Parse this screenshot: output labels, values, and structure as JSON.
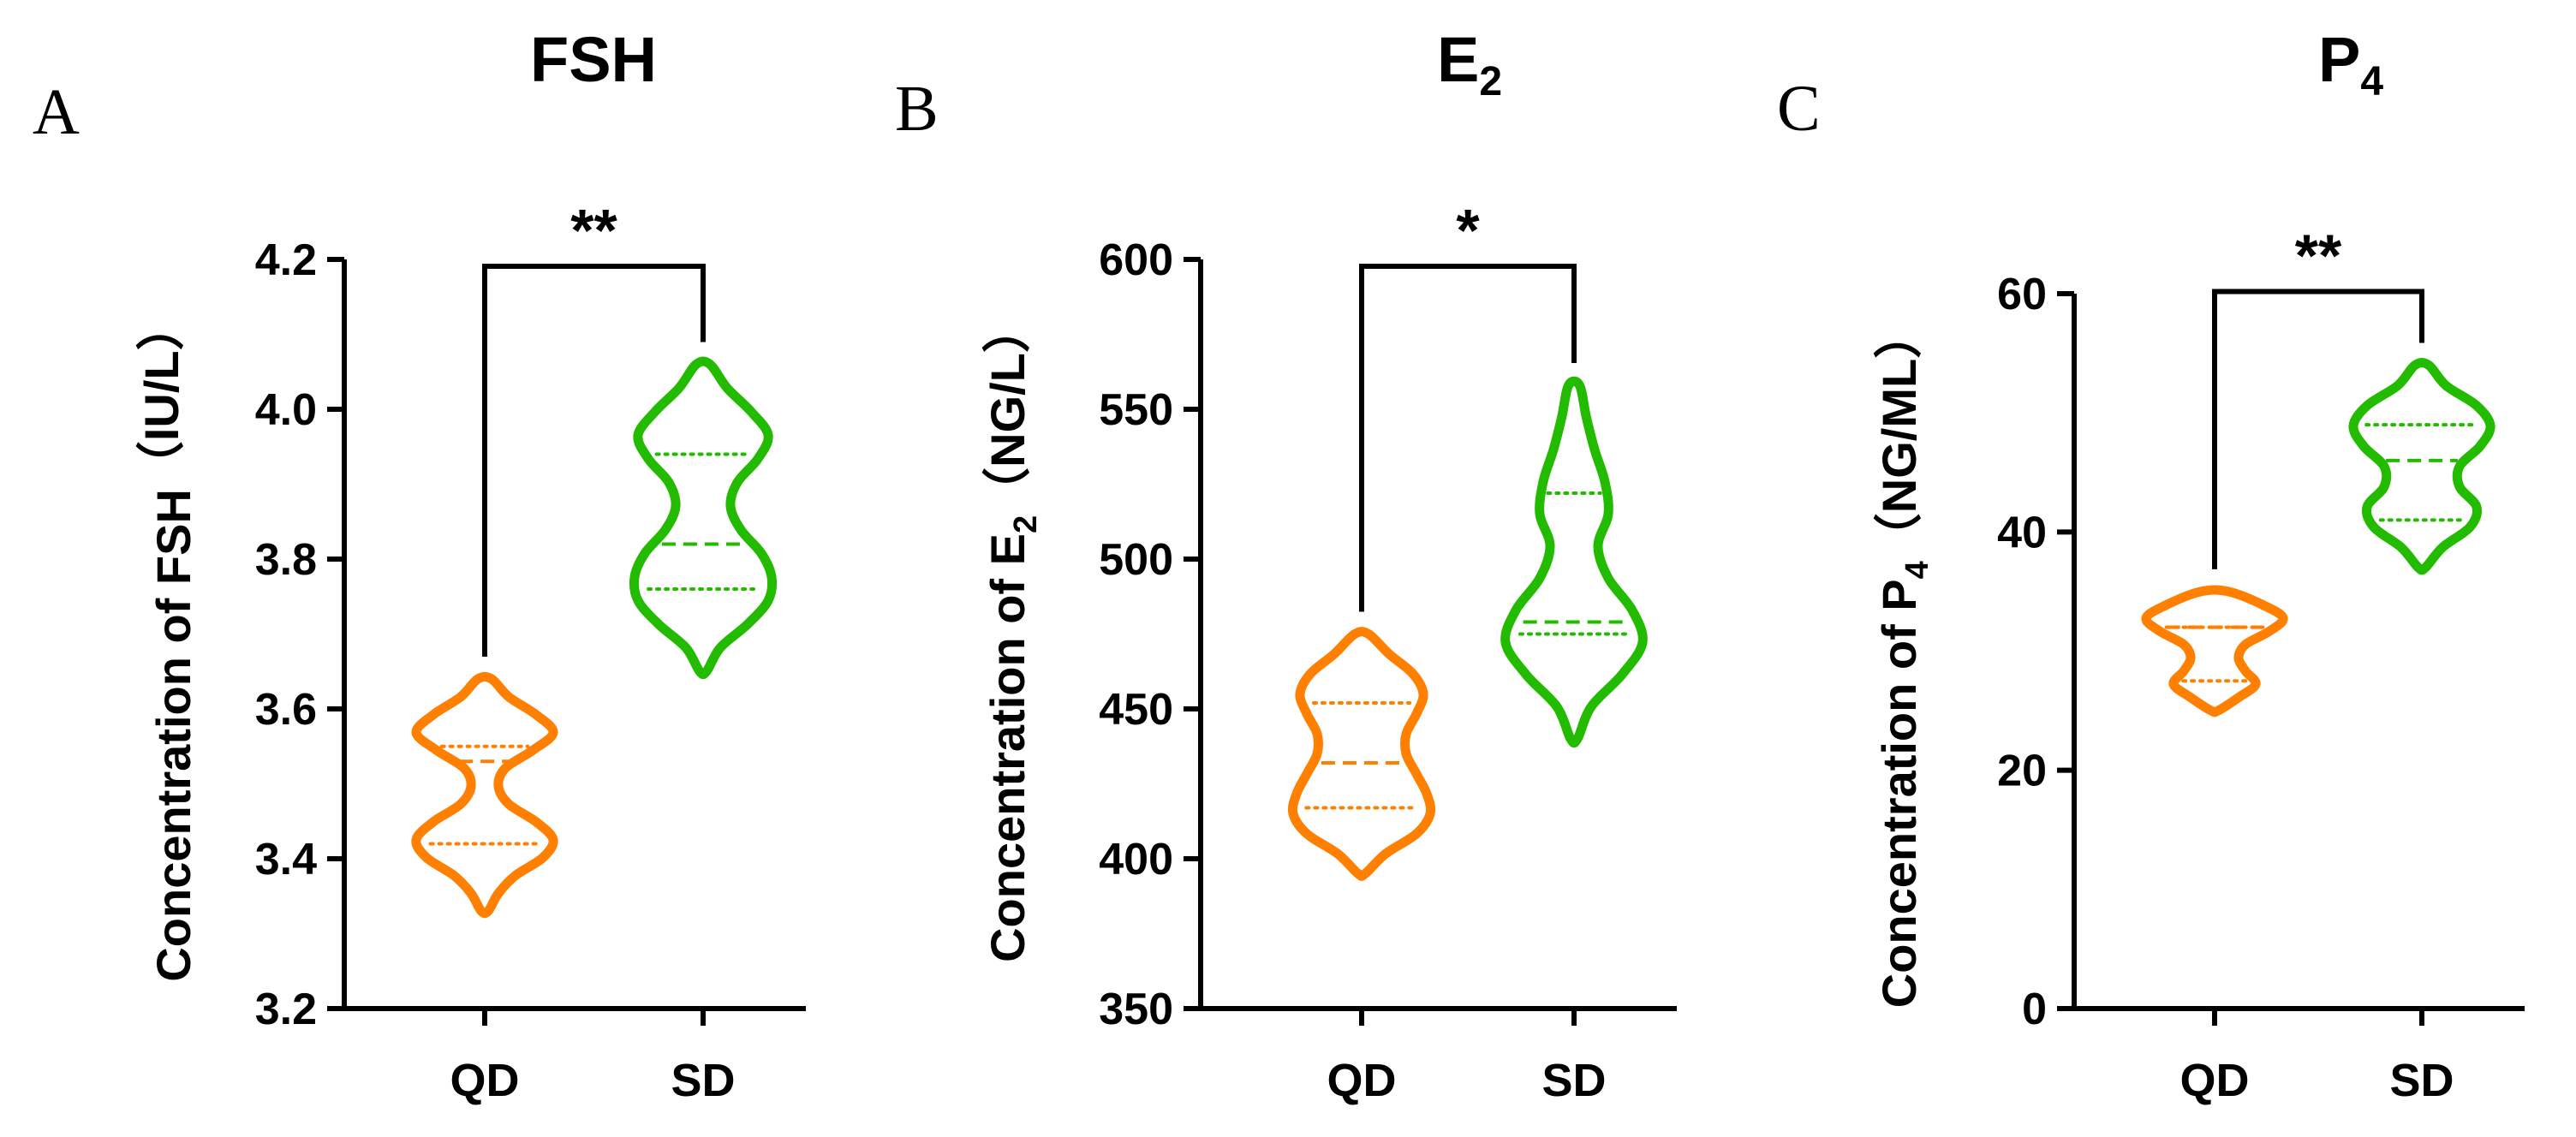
{
  "colors": {
    "QD": "#FF7F00",
    "SD": "#22BB00",
    "axis": "#000000"
  },
  "chart_data": [
    {
      "type": "violin",
      "panel": "A",
      "title": "FSH",
      "title_sub": "",
      "ylabel_prefix": "Concentration of FSH",
      "ylabel_sub": "",
      "ylabel_suffix": "（IU/L）",
      "ylim": [
        3.2,
        4.2
      ],
      "yticks": [
        "3.2",
        "3.4",
        "3.6",
        "3.8",
        "4.0",
        "4.2"
      ],
      "categories": [
        "QD",
        "SD"
      ],
      "significance": "**",
      "series": [
        {
          "name": "QD",
          "min": 3.33,
          "max": 3.64,
          "q1": 3.42,
          "median": 3.53,
          "q3": 3.55,
          "density": [
            0.05,
            0.2,
            0.45,
            0.85,
            1.0,
            0.75,
            0.35,
            0.2,
            0.3,
            0.7,
            1.0,
            0.75,
            0.35,
            0.1
          ]
        },
        {
          "name": "SD",
          "min": 3.65,
          "max": 4.06,
          "q1": 3.76,
          "median": 3.82,
          "q3": 3.94,
          "density": [
            0.05,
            0.25,
            0.65,
            0.95,
            1.0,
            0.85,
            0.55,
            0.4,
            0.5,
            0.8,
            0.95,
            0.7,
            0.35,
            0.1
          ]
        }
      ]
    },
    {
      "type": "violin",
      "panel": "B",
      "title": "E",
      "title_sub": "2",
      "ylabel_prefix": "Concentration of E",
      "ylabel_sub": "2",
      "ylabel_suffix": "（NG/L）",
      "ylim": [
        350,
        600
      ],
      "yticks": [
        "350",
        "400",
        "450",
        "500",
        "550",
        "600"
      ],
      "categories": [
        "QD",
        "SD"
      ],
      "significance": "*",
      "series": [
        {
          "name": "QD",
          "min": 395,
          "max": 475,
          "q1": 417,
          "median": 432,
          "q3": 452,
          "density": [
            0.05,
            0.35,
            0.8,
            1.0,
            0.95,
            0.8,
            0.65,
            0.65,
            0.8,
            0.9,
            0.75,
            0.4,
            0.1
          ]
        },
        {
          "name": "SD",
          "min": 440,
          "max": 558,
          "q1": 475,
          "median": 479,
          "q3": 522,
          "density": [
            0.05,
            0.25,
            0.7,
            1.0,
            0.85,
            0.5,
            0.35,
            0.5,
            0.45,
            0.3,
            0.18,
            0.08
          ]
        }
      ]
    },
    {
      "type": "violin",
      "panel": "C",
      "title": "P",
      "title_sub": "4",
      "ylabel_prefix": "Concentration of P",
      "ylabel_sub": "4",
      "ylabel_suffix": "（NG/ML）",
      "ylim": [
        0,
        60
      ],
      "yticks": [
        "0",
        "20",
        "40",
        "60"
      ],
      "categories": [
        "QD",
        "SD"
      ],
      "significance": "**",
      "series": [
        {
          "name": "QD",
          "min": 25,
          "max": 35,
          "q1": 27.5,
          "median": 32,
          "q3": 32,
          "density": [
            0.05,
            0.35,
            0.6,
            0.45,
            0.35,
            0.45,
            0.8,
            1.0,
            0.7,
            0.2
          ]
        },
        {
          "name": "SD",
          "min": 37,
          "max": 54,
          "q1": 41,
          "median": 46,
          "q3": 49,
          "density": [
            0.05,
            0.3,
            0.7,
            0.8,
            0.55,
            0.55,
            0.85,
            1.0,
            0.8,
            0.35,
            0.1
          ]
        }
      ]
    }
  ]
}
